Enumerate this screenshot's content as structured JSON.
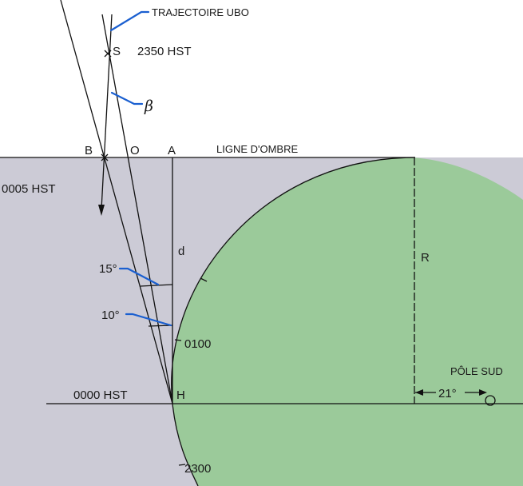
{
  "colors": {
    "shadow": "#cccbd6",
    "planet": "#9bca9a",
    "leader": "#1a5fd0",
    "line": "#111111"
  },
  "labels": {
    "trajectory": "TRAJECTOIRE UBO",
    "s_point": "S",
    "s_time": "2350 HST",
    "beta": "β",
    "b_point": "B",
    "o_point": "O",
    "a_point": "A",
    "shadow_line": "LIGNE D'OMBRE",
    "t_0005": "0005 HST",
    "d": "d",
    "r": "R",
    "angle_15": "15°",
    "angle_10": "10°",
    "t_0100": "0100",
    "pole": "PÔLE SUD",
    "t_0000": "0000 HST",
    "h_point": "H",
    "angle_21": "21°",
    "t_2300": "2300"
  }
}
